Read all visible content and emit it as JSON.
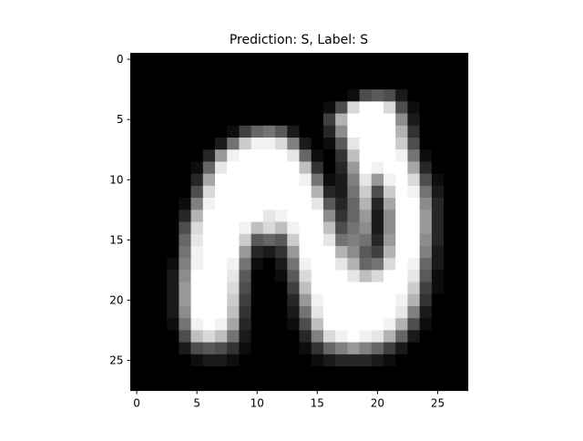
{
  "figure": {
    "title": "Prediction: S, Label: S"
  },
  "chart_data": {
    "type": "heatmap",
    "title": "Prediction: S, Label: S",
    "colormap": "gray",
    "value_range": [
      0,
      1
    ],
    "xlabel": "",
    "ylabel": "",
    "xlim": [
      -0.5,
      27.5
    ],
    "ylim": [
      27.5,
      -0.5
    ],
    "x_ticks": [
      0,
      5,
      10,
      15,
      20,
      25
    ],
    "y_ticks": [
      0,
      5,
      10,
      15,
      20,
      25
    ],
    "x_tick_labels": [
      "0",
      "5",
      "10",
      "15",
      "20",
      "25"
    ],
    "y_tick_labels": [
      "0",
      "5",
      "10",
      "15",
      "20",
      "25"
    ],
    "grid": false,
    "rows": 28,
    "cols": 28,
    "values": [
      [
        0,
        0,
        0,
        0,
        0,
        0,
        0,
        0,
        0,
        0,
        0,
        0,
        0,
        0,
        0,
        0,
        0,
        0,
        0,
        0,
        0,
        0,
        0,
        0,
        0,
        0,
        0,
        0
      ],
      [
        0,
        0,
        0,
        0,
        0,
        0,
        0,
        0,
        0,
        0,
        0,
        0,
        0,
        0,
        0,
        0,
        0,
        0,
        0,
        0,
        0,
        0,
        0,
        0,
        0,
        0,
        0,
        0
      ],
      [
        0,
        0,
        0,
        0,
        0,
        0,
        0,
        0,
        0,
        0,
        0,
        0,
        0,
        0,
        0,
        0,
        0,
        0,
        0,
        0,
        0,
        0,
        0,
        0,
        0,
        0,
        0,
        0
      ],
      [
        0,
        0,
        0,
        0,
        0,
        0,
        0,
        0,
        0,
        0,
        0,
        0,
        0,
        0,
        0,
        0,
        0,
        0,
        0.05,
        0.3,
        0.35,
        0.3,
        0.1,
        0,
        0,
        0,
        0,
        0
      ],
      [
        0,
        0,
        0,
        0,
        0,
        0,
        0,
        0,
        0,
        0,
        0,
        0,
        0,
        0,
        0,
        0,
        0.05,
        0.3,
        0.85,
        1,
        1,
        0.85,
        0.3,
        0.05,
        0,
        0,
        0,
        0
      ],
      [
        0,
        0,
        0,
        0,
        0,
        0,
        0,
        0,
        0,
        0,
        0,
        0,
        0,
        0,
        0,
        0,
        0.25,
        0.7,
        1,
        1,
        1,
        1,
        0.55,
        0.1,
        0,
        0,
        0,
        0
      ],
      [
        0,
        0,
        0,
        0,
        0,
        0,
        0,
        0,
        0.05,
        0.25,
        0.4,
        0.45,
        0.35,
        0.1,
        0,
        0,
        0.15,
        0.55,
        1,
        1,
        1,
        1,
        0.7,
        0.2,
        0,
        0,
        0,
        0
      ],
      [
        0,
        0,
        0,
        0,
        0,
        0,
        0,
        0.1,
        0.45,
        0.8,
        0.95,
        0.95,
        0.85,
        0.5,
        0.1,
        0,
        0.05,
        0.35,
        0.9,
        1,
        1,
        1,
        0.8,
        0.3,
        0,
        0,
        0,
        0
      ],
      [
        0,
        0,
        0,
        0,
        0,
        0,
        0.15,
        0.6,
        0.95,
        1,
        1,
        1,
        1,
        0.9,
        0.4,
        0.05,
        0,
        0.2,
        0.75,
        1,
        1,
        1,
        0.95,
        0.45,
        0.05,
        0,
        0,
        0
      ],
      [
        0,
        0,
        0,
        0,
        0,
        0.05,
        0.4,
        0.9,
        1,
        1,
        1,
        1,
        1,
        1,
        0.75,
        0.2,
        0,
        0.15,
        0.6,
        1,
        0.95,
        1,
        1,
        0.65,
        0.15,
        0,
        0,
        0
      ],
      [
        0,
        0,
        0,
        0,
        0,
        0.15,
        0.65,
        1,
        1,
        1,
        1,
        1,
        1,
        1,
        0.95,
        0.45,
        0.05,
        0.1,
        0.5,
        0.9,
        0.6,
        0.95,
        1,
        0.85,
        0.3,
        0.05,
        0,
        0
      ],
      [
        0,
        0,
        0,
        0,
        0,
        0.3,
        0.85,
        1,
        1,
        1,
        1,
        1,
        1,
        1,
        1,
        0.7,
        0.15,
        0.1,
        0.45,
        0.8,
        0.3,
        0.8,
        1,
        0.95,
        0.45,
        0.1,
        0,
        0
      ],
      [
        0,
        0,
        0,
        0,
        0.05,
        0.5,
        0.95,
        1,
        1,
        1,
        1,
        1,
        1,
        1,
        1,
        0.9,
        0.35,
        0.15,
        0.4,
        0.7,
        0.15,
        0.65,
        1,
        1,
        0.55,
        0.15,
        0,
        0
      ],
      [
        0,
        0,
        0,
        0,
        0.15,
        0.7,
        1,
        1,
        1,
        1,
        1,
        0.9,
        0.95,
        1,
        1,
        1,
        0.55,
        0.2,
        0.4,
        0.6,
        0.1,
        0.55,
        1,
        1,
        0.6,
        0.15,
        0,
        0
      ],
      [
        0,
        0,
        0,
        0,
        0.3,
        0.85,
        1,
        1,
        1,
        0.95,
        0.75,
        0.85,
        0.75,
        0.95,
        1,
        1,
        0.75,
        0.3,
        0.45,
        0.55,
        0.1,
        0.55,
        1,
        1,
        0.6,
        0.15,
        0,
        0
      ],
      [
        0,
        0,
        0,
        0,
        0.4,
        0.9,
        1,
        1,
        1,
        0.8,
        0.35,
        0.4,
        0.35,
        0.8,
        1,
        1,
        0.9,
        0.45,
        0.5,
        0.45,
        0.15,
        0.6,
        1,
        1,
        0.55,
        0.15,
        0,
        0
      ],
      [
        0,
        0,
        0,
        0,
        0.45,
        0.95,
        1,
        1,
        1,
        0.6,
        0.15,
        0.1,
        0.2,
        0.6,
        1,
        1,
        1,
        0.7,
        0.55,
        0.35,
        0.25,
        0.7,
        1,
        1,
        0.5,
        0.1,
        0,
        0
      ],
      [
        0,
        0,
        0,
        0.05,
        0.5,
        0.95,
        1,
        1,
        0.95,
        0.45,
        0.05,
        0,
        0.1,
        0.45,
        0.95,
        1,
        1,
        0.9,
        0.7,
        0.4,
        0.45,
        0.85,
        1,
        0.95,
        0.4,
        0.1,
        0,
        0
      ],
      [
        0,
        0,
        0,
        0.1,
        0.55,
        1,
        1,
        1,
        0.9,
        0.35,
        0,
        0,
        0.05,
        0.35,
        0.85,
        1,
        1,
        1,
        0.9,
        0.75,
        0.85,
        1,
        1,
        0.9,
        0.35,
        0.05,
        0,
        0
      ],
      [
        0,
        0,
        0,
        0.1,
        0.6,
        1,
        1,
        1,
        0.85,
        0.3,
        0,
        0,
        0,
        0.25,
        0.75,
        1,
        1,
        1,
        1,
        1,
        1,
        1,
        1,
        0.8,
        0.25,
        0.05,
        0,
        0
      ],
      [
        0,
        0,
        0,
        0.1,
        0.6,
        1,
        1,
        1,
        0.8,
        0.25,
        0,
        0,
        0,
        0.15,
        0.6,
        0.95,
        1,
        1,
        1,
        1,
        1,
        1,
        0.95,
        0.7,
        0.2,
        0,
        0,
        0
      ],
      [
        0,
        0,
        0,
        0.1,
        0.55,
        1,
        1,
        1,
        0.75,
        0.2,
        0,
        0,
        0,
        0.1,
        0.45,
        0.9,
        1,
        1,
        1,
        1,
        1,
        1,
        0.9,
        0.5,
        0.1,
        0,
        0,
        0
      ],
      [
        0,
        0,
        0,
        0.05,
        0.45,
        0.95,
        1,
        0.95,
        0.65,
        0.15,
        0,
        0,
        0,
        0.05,
        0.3,
        0.75,
        1,
        1,
        1,
        1,
        1,
        0.95,
        0.7,
        0.3,
        0.05,
        0,
        0,
        0
      ],
      [
        0,
        0,
        0,
        0,
        0.3,
        0.75,
        0.85,
        0.75,
        0.45,
        0.1,
        0,
        0,
        0,
        0,
        0.15,
        0.5,
        0.85,
        0.95,
        1,
        0.95,
        0.9,
        0.7,
        0.4,
        0.1,
        0,
        0,
        0,
        0
      ],
      [
        0,
        0,
        0,
        0,
        0.1,
        0.3,
        0.35,
        0.3,
        0.2,
        0.05,
        0,
        0,
        0,
        0,
        0.05,
        0.2,
        0.4,
        0.5,
        0.6,
        0.5,
        0.4,
        0.25,
        0.1,
        0,
        0,
        0,
        0,
        0
      ],
      [
        0,
        0,
        0,
        0,
        0,
        0.05,
        0.1,
        0.1,
        0.05,
        0,
        0,
        0,
        0,
        0,
        0,
        0.05,
        0.1,
        0.15,
        0.15,
        0.15,
        0.1,
        0.05,
        0,
        0,
        0,
        0,
        0,
        0
      ],
      [
        0,
        0,
        0,
        0,
        0,
        0,
        0,
        0,
        0,
        0,
        0,
        0,
        0,
        0,
        0,
        0,
        0,
        0,
        0,
        0,
        0,
        0,
        0,
        0,
        0,
        0,
        0,
        0
      ],
      [
        0,
        0,
        0,
        0,
        0,
        0,
        0,
        0,
        0,
        0,
        0,
        0,
        0,
        0,
        0,
        0,
        0,
        0,
        0,
        0,
        0,
        0,
        0,
        0,
        0,
        0,
        0,
        0
      ]
    ]
  }
}
